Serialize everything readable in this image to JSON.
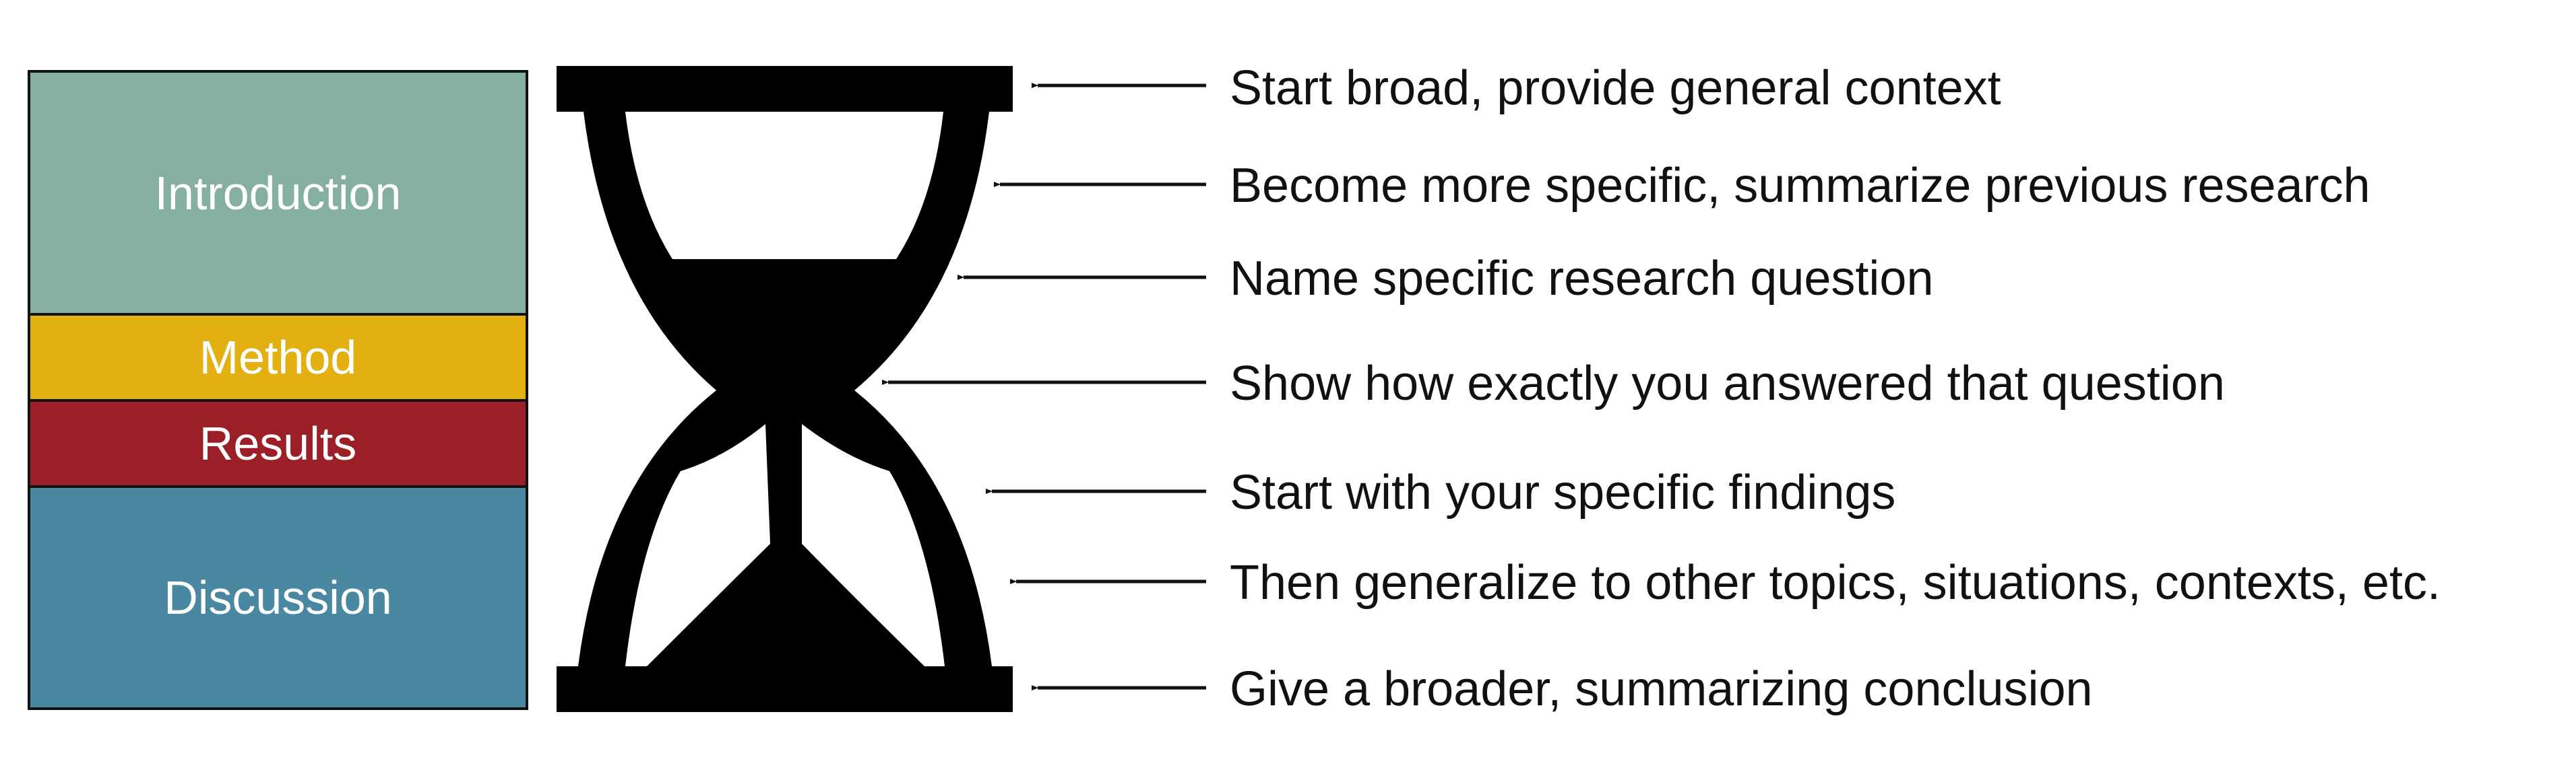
{
  "colors": {
    "introduction": "#85b0a1",
    "method": "#e3b011",
    "results": "#9b1f27",
    "discussion": "#4a88a2",
    "hourglass": "#000000"
  },
  "sections": [
    {
      "label": "Introduction"
    },
    {
      "label": "Method"
    },
    {
      "label": "Results"
    },
    {
      "label": "Discussion"
    }
  ],
  "annotations": [
    {
      "text": "Start broad, provide general context"
    },
    {
      "text": "Become more specific, summarize previous research"
    },
    {
      "text": "Name specific research question"
    },
    {
      "text": "Show how exactly you answered that question"
    },
    {
      "text": "Start with your specific findings"
    },
    {
      "text": "Then generalize to other topics, situations, contexts, etc."
    },
    {
      "text": "Give a broader, summarizing conclusion"
    }
  ]
}
